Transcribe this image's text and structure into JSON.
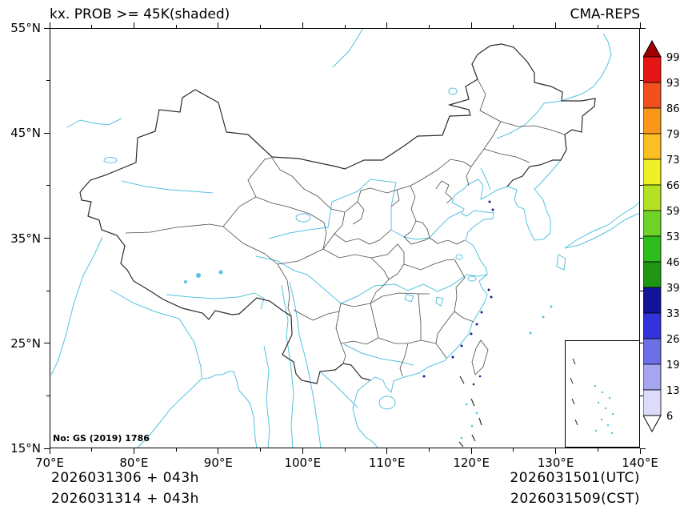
{
  "header": {
    "title": "kx. PROB >= 45K(shaded)",
    "model_label": "CMA-REPS"
  },
  "map": {
    "annotation": "No: GS (2019) 1786",
    "x_axis": {
      "tick_labels": [
        "70°E",
        "80°E",
        "90°E",
        "100°E",
        "110°E",
        "120°E",
        "130°E",
        "140°E"
      ],
      "tick_values": [
        70,
        80,
        90,
        100,
        110,
        120,
        130,
        140
      ],
      "minor_values": [
        75,
        85,
        95,
        105,
        115,
        125,
        135
      ]
    },
    "y_axis": {
      "tick_labels": [
        "55°N",
        "45°N",
        "35°N",
        "25°N",
        "15°N"
      ],
      "tick_values": [
        55,
        45,
        35,
        25,
        15
      ],
      "minor_values": [
        20,
        30,
        40,
        50
      ]
    }
  },
  "colorbar": {
    "labels": [
      "99",
      "93",
      "86",
      "79",
      "73",
      "66",
      "59",
      "53",
      "46",
      "39",
      "33",
      "26",
      "19",
      "13",
      "6"
    ],
    "cell_colors": [
      "#E61414",
      "#F0501E",
      "#FA9619",
      "#FBBE23",
      "#F0F028",
      "#B4E121",
      "#6ED228",
      "#2DBE1E",
      "#1E9614",
      "#14149B",
      "#3232DC",
      "#6E6EE6",
      "#A5A5F0",
      "#DCDCFA"
    ],
    "top_arrow_color": "#A00000",
    "bottom_arrow_color": "#FFFFFF"
  },
  "footer": {
    "init_utc_line": "2026031306 + 043h",
    "init_cst_line": "2026031314 + 043h",
    "valid_utc": "2026031501(UTC)",
    "valid_cst": "2026031509(CST)"
  }
}
